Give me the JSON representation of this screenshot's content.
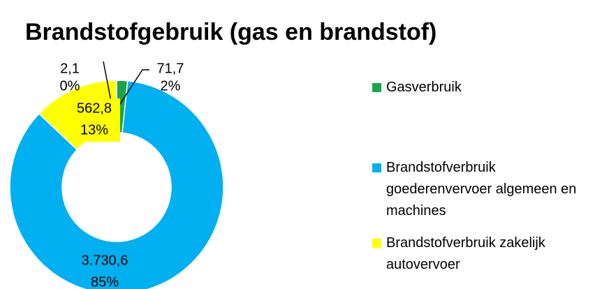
{
  "chart_data": {
    "type": "donut",
    "title": "Brandstofgebruik (gas en brandstof)",
    "categories": [
      "Gasverbruik",
      "Brandstofverbruik goederenvervoer algemeen en machines",
      "Brandstofverbruik zakelijk autovervoer",
      null
    ],
    "values": [
      71.7,
      3730.6,
      562.8,
      2.1
    ],
    "value_labels": [
      "71,7",
      "3.730,6",
      "562,8",
      "2,1"
    ],
    "percent_labels": [
      "2%",
      "85%",
      "13%",
      "0%"
    ],
    "colors": [
      "#19a64a",
      "#00b0f0",
      "#ffff00",
      "#4a4a4a"
    ],
    "legend": "right"
  }
}
